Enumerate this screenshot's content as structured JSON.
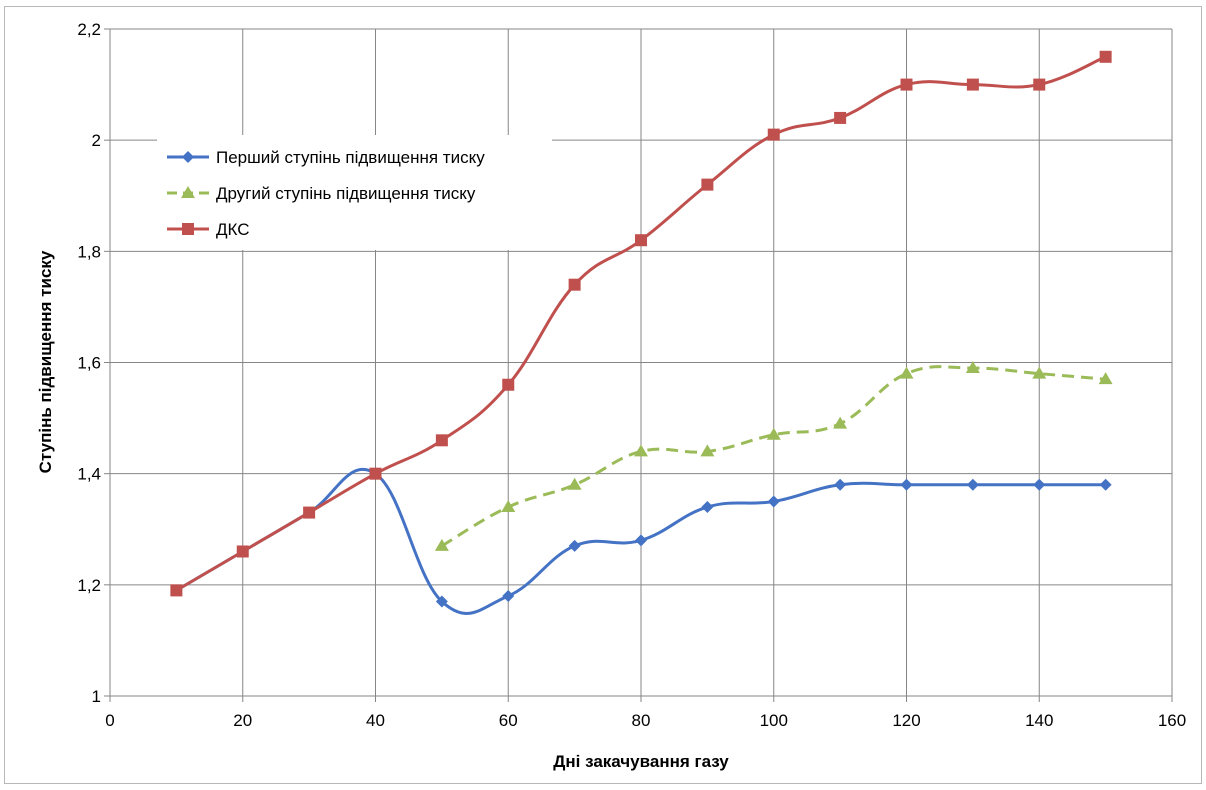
{
  "chart_data": {
    "type": "line",
    "title": "",
    "xlabel": "Дні закачування газу",
    "ylabel": "Ступінь підвищення тиску",
    "xlim": [
      0,
      160
    ],
    "ylim": [
      1,
      2.2
    ],
    "x_ticks": [
      "0",
      "20",
      "40",
      "60",
      "80",
      "100",
      "120",
      "140",
      "160"
    ],
    "y_ticks": [
      "1",
      "1,2",
      "1,4",
      "1,6",
      "1,8",
      "2",
      "2,2"
    ],
    "grid": true,
    "legend_position": "top-left",
    "series": [
      {
        "name": "Перший ступінь підвищення тиску",
        "color": "#4472c4",
        "marker": "diamond",
        "dash": "solid",
        "x": [
          10,
          20,
          30,
          40,
          50,
          60,
          70,
          80,
          90,
          100,
          110,
          120,
          130,
          140,
          150
        ],
        "y": [
          1.19,
          1.26,
          1.33,
          1.4,
          1.17,
          1.18,
          1.27,
          1.28,
          1.34,
          1.35,
          1.38,
          1.38,
          1.38,
          1.38,
          1.38
        ]
      },
      {
        "name": "Другий ступінь підвищення тиску",
        "color": "#9bbb59",
        "marker": "triangle",
        "dash": "dashed",
        "x": [
          50,
          60,
          70,
          80,
          90,
          100,
          110,
          120,
          130,
          140,
          150
        ],
        "y": [
          1.27,
          1.34,
          1.38,
          1.44,
          1.44,
          1.47,
          1.49,
          1.58,
          1.59,
          1.58,
          1.57
        ]
      },
      {
        "name": "ДКС",
        "color": "#c0504d",
        "marker": "square",
        "dash": "solid",
        "x": [
          10,
          20,
          30,
          40,
          50,
          60,
          70,
          80,
          90,
          100,
          110,
          120,
          130,
          140,
          150
        ],
        "y": [
          1.19,
          1.26,
          1.33,
          1.4,
          1.46,
          1.56,
          1.74,
          1.82,
          1.92,
          2.01,
          2.04,
          2.1,
          2.1,
          2.1,
          2.15
        ]
      }
    ]
  }
}
